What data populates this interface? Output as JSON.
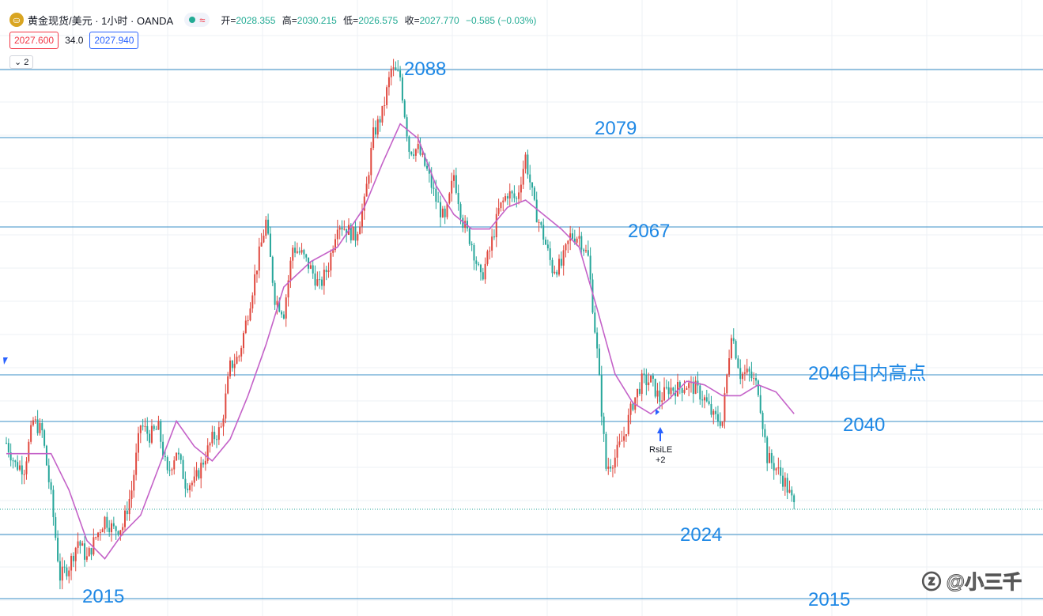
{
  "header": {
    "symbol_title": "黄金现货/美元 · 1小时 · OANDA",
    "logo_icon": "gold-coin-icon",
    "ohlc": [
      {
        "label": "开=",
        "value": "2028.355"
      },
      {
        "label": "高=",
        "value": "2030.215"
      },
      {
        "label": "低=",
        "value": "2026.575"
      },
      {
        "label": "收=",
        "value": "2027.770"
      }
    ],
    "change": "−0.585 (−0.03%)",
    "wave_icon": "≈"
  },
  "prices": {
    "sell": "2027.600",
    "spread": "34.0",
    "buy": "2027.940"
  },
  "indicator_toggle": "2",
  "watermark": "ⓩ @小三千",
  "colors": {
    "up": "#e0493f",
    "down": "#26a69a",
    "ma": "#c462c8",
    "level_line": "#3a8fc7",
    "annotation": "#1e88e5"
  },
  "chart_data": {
    "type": "candlestick",
    "title": "黄金现货/美元 · 1小时 · OANDA",
    "xlabel": "",
    "ylabel": "",
    "ylim": [
      2012,
      2093
    ],
    "grid": true,
    "levels": [
      {
        "value": 2088,
        "label": "2088"
      },
      {
        "value": 2079,
        "label": "2079"
      },
      {
        "value": 2067,
        "label": "2067"
      },
      {
        "value": 2046,
        "label": "2046日内高点"
      },
      {
        "value": 2040,
        "label": "2040"
      },
      {
        "value": 2024,
        "label": "2024"
      },
      {
        "value": 2015,
        "label": "2015"
      },
      {
        "value": 2015,
        "label": "2015"
      }
    ],
    "current_price": 2027.77,
    "signal": {
      "label": "RsiLE",
      "sub": "+2",
      "price": 2034.5
    },
    "path": [
      [
        0,
        2036.5
      ],
      [
        4,
        2033.5
      ],
      [
        8,
        2033
      ],
      [
        12,
        2039.5
      ],
      [
        16,
        2038
      ],
      [
        20,
        2029
      ],
      [
        24,
        2018
      ],
      [
        28,
        2019.5
      ],
      [
        32,
        2023
      ],
      [
        36,
        2020.5
      ],
      [
        40,
        2023.5
      ],
      [
        44,
        2026
      ],
      [
        48,
        2024.5
      ],
      [
        52,
        2025
      ],
      [
        56,
        2030
      ],
      [
        60,
        2039
      ],
      [
        64,
        2037.5
      ],
      [
        68,
        2038.5
      ],
      [
        72,
        2032
      ],
      [
        76,
        2035.5
      ],
      [
        80,
        2031
      ],
      [
        84,
        2031
      ],
      [
        88,
        2034
      ],
      [
        92,
        2037
      ],
      [
        96,
        2038.5
      ],
      [
        100,
        2047
      ],
      [
        104,
        2048.5
      ],
      [
        108,
        2054.5
      ],
      [
        112,
        2061
      ],
      [
        116,
        2067
      ],
      [
        120,
        2056.5
      ],
      [
        124,
        2054.5
      ],
      [
        128,
        2063.5
      ],
      [
        132,
        2062.5
      ],
      [
        136,
        2060.5
      ],
      [
        140,
        2058
      ],
      [
        144,
        2061
      ],
      [
        148,
        2067
      ],
      [
        152,
        2066
      ],
      [
        156,
        2065
      ],
      [
        160,
        2069.5
      ],
      [
        164,
        2079
      ],
      [
        168,
        2082
      ],
      [
        172,
        2088
      ],
      [
        176,
        2087
      ],
      [
        180,
        2077
      ],
      [
        184,
        2077
      ],
      [
        188,
        2074
      ],
      [
        192,
        2070
      ],
      [
        196,
        2067
      ],
      [
        200,
        2073.5
      ],
      [
        204,
        2067
      ],
      [
        208,
        2064
      ],
      [
        212,
        2059
      ],
      [
        216,
        2063
      ],
      [
        220,
        2068.5
      ],
      [
        224,
        2071
      ],
      [
        228,
        2070
      ],
      [
        232,
        2076
      ],
      [
        236,
        2069
      ],
      [
        240,
        2065
      ],
      [
        244,
        2060.5
      ],
      [
        248,
        2061
      ],
      [
        252,
        2065
      ],
      [
        256,
        2065
      ],
      [
        260,
        2062
      ],
      [
        264,
        2049
      ],
      [
        268,
        2033
      ],
      [
        272,
        2034.5
      ],
      [
        276,
        2037.5
      ],
      [
        280,
        2042
      ],
      [
        284,
        2045
      ],
      [
        288,
        2045
      ],
      [
        292,
        2042.5
      ],
      [
        296,
        2044
      ],
      [
        300,
        2044
      ],
      [
        304,
        2044.5
      ],
      [
        308,
        2044
      ],
      [
        312,
        2042.5
      ],
      [
        316,
        2040
      ],
      [
        320,
        2039.5
      ],
      [
        324,
        2052
      ],
      [
        328,
        2046
      ],
      [
        332,
        2046
      ],
      [
        336,
        2044
      ],
      [
        340,
        2034.5
      ],
      [
        344,
        2033
      ],
      [
        348,
        2031
      ],
      [
        352,
        2027.77
      ]
    ],
    "ma": [
      [
        0,
        2035
      ],
      [
        12,
        2035
      ],
      [
        20,
        2035
      ],
      [
        28,
        2030
      ],
      [
        36,
        2023
      ],
      [
        44,
        2020.5
      ],
      [
        52,
        2024
      ],
      [
        60,
        2026.5
      ],
      [
        68,
        2033
      ],
      [
        76,
        2039.5
      ],
      [
        84,
        2036
      ],
      [
        92,
        2034
      ],
      [
        100,
        2037
      ],
      [
        108,
        2043
      ],
      [
        116,
        2050
      ],
      [
        124,
        2058
      ],
      [
        136,
        2061.5
      ],
      [
        148,
        2063.5
      ],
      [
        160,
        2069
      ],
      [
        168,
        2075
      ],
      [
        176,
        2080.5
      ],
      [
        184,
        2078.5
      ],
      [
        192,
        2072
      ],
      [
        200,
        2068
      ],
      [
        208,
        2066
      ],
      [
        216,
        2066
      ],
      [
        224,
        2069
      ],
      [
        232,
        2070
      ],
      [
        240,
        2068
      ],
      [
        248,
        2066
      ],
      [
        256,
        2063.5
      ],
      [
        264,
        2055
      ],
      [
        272,
        2046
      ],
      [
        280,
        2042
      ],
      [
        288,
        2040.5
      ],
      [
        296,
        2042.5
      ],
      [
        304,
        2045
      ],
      [
        312,
        2044.5
      ],
      [
        320,
        2043
      ],
      [
        328,
        2043
      ],
      [
        336,
        2044.5
      ],
      [
        344,
        2043.5
      ],
      [
        352,
        2040.5
      ]
    ]
  }
}
